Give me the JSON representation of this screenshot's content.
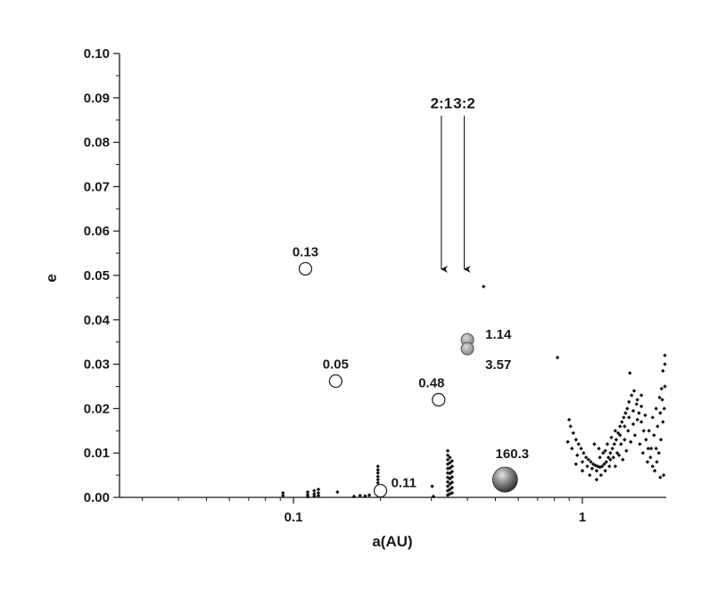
{
  "chart_data": {
    "type": "scatter",
    "xlabel": "a(AU)",
    "ylabel": "e",
    "xscale": "log",
    "xlim": [
      0.025,
      1.95
    ],
    "ylim": [
      0,
      0.1
    ],
    "x_ticks": [
      {
        "value": 0.1,
        "label": "0.1"
      },
      {
        "value": 1,
        "label": "1"
      }
    ],
    "y_ticks": [
      {
        "value": 0.0,
        "label": "0.00"
      },
      {
        "value": 0.01,
        "label": "0.01"
      },
      {
        "value": 0.02,
        "label": "0.02"
      },
      {
        "value": 0.03,
        "label": "0.03"
      },
      {
        "value": 0.04,
        "label": "0.04"
      },
      {
        "value": 0.05,
        "label": "0.05"
      },
      {
        "value": 0.06,
        "label": "0.06"
      },
      {
        "value": 0.07,
        "label": "0.07"
      },
      {
        "value": 0.08,
        "label": "0.08"
      },
      {
        "value": 0.09,
        "label": "0.09"
      },
      {
        "value": 0.1,
        "label": "0.10"
      }
    ],
    "grid": false,
    "planets": [
      {
        "a": 0.11,
        "e": 0.0515,
        "label": "0.13",
        "style": "open",
        "label_pos": "above"
      },
      {
        "a": 0.14,
        "e": 0.0262,
        "label": "0.05",
        "style": "open",
        "label_pos": "above"
      },
      {
        "a": 0.2,
        "e": 0.0015,
        "label": "0.11",
        "style": "open",
        "label_pos": "right"
      },
      {
        "a": 0.318,
        "e": 0.022,
        "label": "0.48",
        "style": "open",
        "label_pos": "above-left"
      },
      {
        "a": 0.4,
        "e": 0.0355,
        "label": "1.14",
        "style": "grey",
        "label_pos": "right"
      },
      {
        "a": 0.4,
        "e": 0.0335,
        "label": "3.57",
        "style": "grey",
        "label_pos": "below-right"
      },
      {
        "a": 0.54,
        "e": 0.002,
        "label": "160.3",
        "style": "giant",
        "label_pos": "above"
      }
    ],
    "resonances": [
      {
        "label": "2:1",
        "a": 0.325,
        "e_top": 0.086,
        "e_bottom": 0.051
      },
      {
        "label": "3:2",
        "a": 0.39,
        "e_top": 0.086,
        "e_bottom": 0.051
      }
    ],
    "small_bodies": [
      {
        "a": 0.455,
        "e": 0.0475
      },
      {
        "a": 0.82,
        "e": 0.0315
      },
      {
        "a": 0.092,
        "e": 0.001
      },
      {
        "a": 0.092,
        "e": 0.0004
      },
      {
        "a": 0.112,
        "e": 0.0012
      },
      {
        "a": 0.112,
        "e": 0.0006
      },
      {
        "a": 0.112,
        "e": 0.0002
      },
      {
        "a": 0.118,
        "e": 0.0015
      },
      {
        "a": 0.118,
        "e": 0.0008
      },
      {
        "a": 0.118,
        "e": 0.0003
      },
      {
        "a": 0.122,
        "e": 0.0018
      },
      {
        "a": 0.122,
        "e": 0.001
      },
      {
        "a": 0.122,
        "e": 0.0004
      },
      {
        "a": 0.142,
        "e": 0.0012
      },
      {
        "a": 0.162,
        "e": 0.0002
      },
      {
        "a": 0.17,
        "e": 0.0004
      },
      {
        "a": 0.177,
        "e": 0.0003
      },
      {
        "a": 0.183,
        "e": 0.0005
      },
      {
        "a": 0.196,
        "e": 0.007
      },
      {
        "a": 0.196,
        "e": 0.0062
      },
      {
        "a": 0.196,
        "e": 0.0055
      },
      {
        "a": 0.196,
        "e": 0.0047
      },
      {
        "a": 0.196,
        "e": 0.004
      },
      {
        "a": 0.196,
        "e": 0.0033
      },
      {
        "a": 0.196,
        "e": 0.0026
      },
      {
        "a": 0.196,
        "e": 0.0019
      },
      {
        "a": 0.302,
        "e": 0.0025
      },
      {
        "a": 0.305,
        "e": 0.0002
      },
      {
        "a": 0.342,
        "e": 0.0105
      },
      {
        "a": 0.342,
        "e": 0.0095
      },
      {
        "a": 0.342,
        "e": 0.0085
      },
      {
        "a": 0.342,
        "e": 0.0075
      },
      {
        "a": 0.342,
        "e": 0.0065
      },
      {
        "a": 0.342,
        "e": 0.0055
      },
      {
        "a": 0.342,
        "e": 0.0045
      },
      {
        "a": 0.342,
        "e": 0.0035
      },
      {
        "a": 0.342,
        "e": 0.0025
      },
      {
        "a": 0.342,
        "e": 0.0015
      },
      {
        "a": 0.342,
        "e": 0.0005
      },
      {
        "a": 0.348,
        "e": 0.009
      },
      {
        "a": 0.348,
        "e": 0.0078
      },
      {
        "a": 0.348,
        "e": 0.0066
      },
      {
        "a": 0.348,
        "e": 0.0054
      },
      {
        "a": 0.348,
        "e": 0.0042
      },
      {
        "a": 0.348,
        "e": 0.003
      },
      {
        "a": 0.348,
        "e": 0.0018
      },
      {
        "a": 0.348,
        "e": 0.0008
      },
      {
        "a": 0.354,
        "e": 0.0082
      },
      {
        "a": 0.354,
        "e": 0.007
      },
      {
        "a": 0.354,
        "e": 0.0058
      },
      {
        "a": 0.354,
        "e": 0.0046
      },
      {
        "a": 0.354,
        "e": 0.0034
      },
      {
        "a": 0.354,
        "e": 0.0022
      },
      {
        "a": 0.354,
        "e": 0.001
      },
      {
        "a": 0.9,
        "e": 0.0175
      },
      {
        "a": 0.91,
        "e": 0.016
      },
      {
        "a": 0.93,
        "e": 0.0145
      },
      {
        "a": 0.95,
        "e": 0.013
      },
      {
        "a": 0.97,
        "e": 0.012
      },
      {
        "a": 0.99,
        "e": 0.011
      },
      {
        "a": 1.01,
        "e": 0.01
      },
      {
        "a": 1.03,
        "e": 0.009
      },
      {
        "a": 1.05,
        "e": 0.0085
      },
      {
        "a": 1.07,
        "e": 0.008
      },
      {
        "a": 1.09,
        "e": 0.0075
      },
      {
        "a": 1.11,
        "e": 0.0072
      },
      {
        "a": 1.13,
        "e": 0.007
      },
      {
        "a": 1.15,
        "e": 0.0068
      },
      {
        "a": 1.17,
        "e": 0.007
      },
      {
        "a": 1.19,
        "e": 0.0075
      },
      {
        "a": 1.21,
        "e": 0.008
      },
      {
        "a": 1.23,
        "e": 0.009
      },
      {
        "a": 1.25,
        "e": 0.01
      },
      {
        "a": 1.27,
        "e": 0.011
      },
      {
        "a": 1.29,
        "e": 0.012
      },
      {
        "a": 1.31,
        "e": 0.013
      },
      {
        "a": 1.33,
        "e": 0.0145
      },
      {
        "a": 1.35,
        "e": 0.016
      },
      {
        "a": 1.37,
        "e": 0.017
      },
      {
        "a": 1.39,
        "e": 0.018
      },
      {
        "a": 1.41,
        "e": 0.019
      },
      {
        "a": 1.43,
        "e": 0.02
      },
      {
        "a": 1.45,
        "e": 0.0215
      },
      {
        "a": 1.48,
        "e": 0.023
      },
      {
        "a": 1.51,
        "e": 0.024
      },
      {
        "a": 1.54,
        "e": 0.021
      },
      {
        "a": 1.57,
        "e": 0.019
      },
      {
        "a": 1.6,
        "e": 0.017
      },
      {
        "a": 1.63,
        "e": 0.015
      },
      {
        "a": 1.66,
        "e": 0.013
      },
      {
        "a": 1.69,
        "e": 0.011
      },
      {
        "a": 1.72,
        "e": 0.009
      },
      {
        "a": 1.75,
        "e": 0.007
      },
      {
        "a": 1.78,
        "e": 0.006
      },
      {
        "a": 1.81,
        "e": 0.008
      },
      {
        "a": 1.84,
        "e": 0.01
      },
      {
        "a": 1.87,
        "e": 0.013
      },
      {
        "a": 1.9,
        "e": 0.017
      },
      {
        "a": 1.92,
        "e": 0.02
      },
      {
        "a": 1.93,
        "e": 0.025
      },
      {
        "a": 1.93,
        "e": 0.03
      },
      {
        "a": 1.93,
        "e": 0.032
      },
      {
        "a": 1.9,
        "e": 0.0285
      },
      {
        "a": 1.88,
        "e": 0.0245
      },
      {
        "a": 1.85,
        "e": 0.0225
      },
      {
        "a": 1.8,
        "e": 0.02
      },
      {
        "a": 1.75,
        "e": 0.018
      },
      {
        "a": 1.7,
        "e": 0.015
      },
      {
        "a": 1.65,
        "e": 0.0185
      },
      {
        "a": 1.6,
        "e": 0.0205
      },
      {
        "a": 1.55,
        "e": 0.0175
      },
      {
        "a": 1.5,
        "e": 0.0165
      },
      {
        "a": 1.46,
        "e": 0.028
      },
      {
        "a": 1.44,
        "e": 0.015
      },
      {
        "a": 1.4,
        "e": 0.013
      },
      {
        "a": 1.36,
        "e": 0.012
      },
      {
        "a": 1.32,
        "e": 0.01
      },
      {
        "a": 1.28,
        "e": 0.009
      },
      {
        "a": 1.24,
        "e": 0.007
      },
      {
        "a": 1.2,
        "e": 0.006
      },
      {
        "a": 1.16,
        "e": 0.005
      },
      {
        "a": 1.12,
        "e": 0.006
      },
      {
        "a": 1.08,
        "e": 0.0065
      },
      {
        "a": 1.04,
        "e": 0.007
      },
      {
        "a": 1.0,
        "e": 0.008
      },
      {
        "a": 0.96,
        "e": 0.0095
      },
      {
        "a": 0.92,
        "e": 0.011
      },
      {
        "a": 0.89,
        "e": 0.0125
      },
      {
        "a": 1.1,
        "e": 0.012
      },
      {
        "a": 1.14,
        "e": 0.011
      },
      {
        "a": 1.18,
        "e": 0.01
      },
      {
        "a": 1.22,
        "e": 0.012
      },
      {
        "a": 1.26,
        "e": 0.0135
      },
      {
        "a": 1.3,
        "e": 0.015
      },
      {
        "a": 1.34,
        "e": 0.0095
      },
      {
        "a": 1.38,
        "e": 0.0085
      },
      {
        "a": 1.42,
        "e": 0.0105
      },
      {
        "a": 1.47,
        "e": 0.0125
      },
      {
        "a": 1.52,
        "e": 0.014
      },
      {
        "a": 1.58,
        "e": 0.012
      },
      {
        "a": 1.62,
        "e": 0.01
      },
      {
        "a": 1.68,
        "e": 0.008
      },
      {
        "a": 1.73,
        "e": 0.011
      },
      {
        "a": 1.77,
        "e": 0.014
      },
      {
        "a": 1.82,
        "e": 0.016
      },
      {
        "a": 1.86,
        "e": 0.019
      },
      {
        "a": 1.89,
        "e": 0.022
      },
      {
        "a": 1.91,
        "e": 0.005
      },
      {
        "a": 1.86,
        "e": 0.0045
      },
      {
        "a": 1.8,
        "e": 0.011
      },
      {
        "a": 1.12,
        "e": 0.004
      },
      {
        "a": 1.06,
        "e": 0.005
      },
      {
        "a": 1.0,
        "e": 0.006
      },
      {
        "a": 0.95,
        "e": 0.0075
      },
      {
        "a": 1.15,
        "e": 0.009
      },
      {
        "a": 1.2,
        "e": 0.0105
      },
      {
        "a": 1.25,
        "e": 0.0085
      },
      {
        "a": 1.3,
        "e": 0.007
      },
      {
        "a": 1.35,
        "e": 0.014
      },
      {
        "a": 1.4,
        "e": 0.016
      },
      {
        "a": 1.45,
        "e": 0.018
      },
      {
        "a": 1.5,
        "e": 0.0195
      },
      {
        "a": 1.55,
        "e": 0.022
      },
      {
        "a": 1.6,
        "e": 0.023
      }
    ],
    "legend": "none"
  }
}
